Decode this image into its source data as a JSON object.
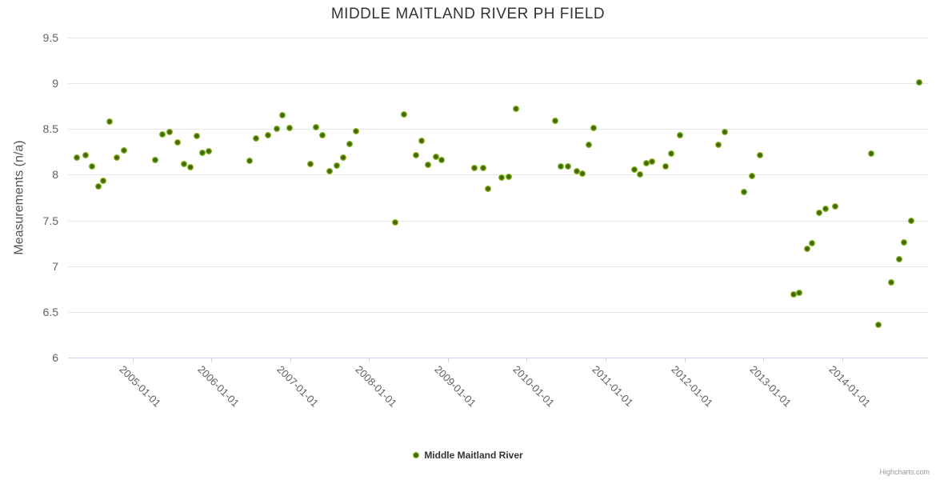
{
  "title": "MIDDLE MAITLAND RIVER PH FIELD",
  "legend": {
    "series_label": "Middle Maitland River"
  },
  "credits": "Highcharts.com",
  "colors": {
    "marker_outer": "#8bbc21",
    "marker_core": "#44660a",
    "grid": "#e6e6e6",
    "axis_line": "#ccd6eb",
    "title_text": "#333333",
    "tick_label": "#606060",
    "axis_title_text": "#555555",
    "legend_text": "#333333",
    "credits_text": "#999999",
    "background": "#ffffff"
  },
  "chart_data": {
    "type": "scatter",
    "title": "MIDDLE MAITLAND RIVER PH FIELD",
    "xlabel": "",
    "ylabel": "Measurements (n/a)",
    "grid": true,
    "legend_position": "bottom-center",
    "x_axis": {
      "unit": "decimal_year",
      "min": 2004.18,
      "max": 2015.09,
      "ticks": [
        2005,
        2006,
        2007,
        2008,
        2009,
        2010,
        2011,
        2012,
        2013,
        2014
      ],
      "tick_labels": [
        "2005-01-01",
        "2006-01-01",
        "2007-01-01",
        "2008-01-01",
        "2009-01-01",
        "2010-01-01",
        "2011-01-01",
        "2012-01-01",
        "2013-01-01",
        "2014-01-01"
      ],
      "label_rotation_deg": 45
    },
    "y_axis": {
      "min": 6,
      "max": 9.5,
      "tick_values": [
        6,
        6.5,
        7,
        7.5,
        8,
        8.5,
        9,
        9.5
      ],
      "tick_labels": [
        "6",
        "6.5",
        "7",
        "7.5",
        "8",
        "8.5",
        "9",
        "9.5"
      ]
    },
    "series": [
      {
        "name": "Middle Maitland River",
        "points": [
          [
            2004.29,
            8.19
          ],
          [
            2004.4,
            8.21
          ],
          [
            2004.48,
            8.09
          ],
          [
            2004.57,
            7.87
          ],
          [
            2004.63,
            7.93
          ],
          [
            2004.71,
            8.58
          ],
          [
            2004.8,
            8.19
          ],
          [
            2004.89,
            8.27
          ],
          [
            2005.29,
            8.16
          ],
          [
            2005.38,
            8.44
          ],
          [
            2005.47,
            8.47
          ],
          [
            2005.57,
            8.35
          ],
          [
            2005.65,
            8.12
          ],
          [
            2005.73,
            8.08
          ],
          [
            2005.81,
            8.42
          ],
          [
            2005.89,
            8.24
          ],
          [
            2005.97,
            8.26
          ],
          [
            2006.48,
            8.15
          ],
          [
            2006.56,
            8.4
          ],
          [
            2006.72,
            8.43
          ],
          [
            2006.83,
            8.5
          ],
          [
            2006.9,
            8.65
          ],
          [
            2006.99,
            8.51
          ],
          [
            2007.26,
            8.12
          ],
          [
            2007.33,
            8.52
          ],
          [
            2007.41,
            8.43
          ],
          [
            2007.5,
            8.04
          ],
          [
            2007.59,
            8.1
          ],
          [
            2007.67,
            8.19
          ],
          [
            2007.75,
            8.34
          ],
          [
            2007.83,
            8.48
          ],
          [
            2008.33,
            7.48
          ],
          [
            2008.44,
            8.66
          ],
          [
            2008.59,
            8.21
          ],
          [
            2008.67,
            8.37
          ],
          [
            2008.75,
            8.11
          ],
          [
            2008.85,
            8.2
          ],
          [
            2008.92,
            8.16
          ],
          [
            2009.34,
            8.07
          ],
          [
            2009.45,
            8.07
          ],
          [
            2009.51,
            7.85
          ],
          [
            2009.68,
            7.97
          ],
          [
            2009.77,
            7.98
          ],
          [
            2009.86,
            8.72
          ],
          [
            2010.36,
            8.59
          ],
          [
            2010.43,
            8.09
          ],
          [
            2010.52,
            8.09
          ],
          [
            2010.63,
            8.04
          ],
          [
            2010.71,
            8.01
          ],
          [
            2010.79,
            8.33
          ],
          [
            2010.85,
            8.51
          ],
          [
            2011.37,
            8.06
          ],
          [
            2011.44,
            8.0
          ],
          [
            2011.52,
            8.13
          ],
          [
            2011.59,
            8.14
          ],
          [
            2011.76,
            8.09
          ],
          [
            2011.83,
            8.23
          ],
          [
            2011.94,
            8.43
          ],
          [
            2012.43,
            8.33
          ],
          [
            2012.51,
            8.47
          ],
          [
            2012.76,
            7.81
          ],
          [
            2012.86,
            7.99
          ],
          [
            2012.96,
            8.21
          ],
          [
            2013.38,
            6.69
          ],
          [
            2013.46,
            6.71
          ],
          [
            2013.56,
            7.19
          ],
          [
            2013.62,
            7.25
          ],
          [
            2013.71,
            7.58
          ],
          [
            2013.79,
            7.63
          ],
          [
            2013.91,
            7.65
          ],
          [
            2014.37,
            8.23
          ],
          [
            2014.46,
            6.36
          ],
          [
            2014.62,
            6.82
          ],
          [
            2014.72,
            7.08
          ],
          [
            2014.79,
            7.26
          ],
          [
            2014.88,
            7.5
          ],
          [
            2014.98,
            9.01
          ]
        ]
      }
    ]
  }
}
